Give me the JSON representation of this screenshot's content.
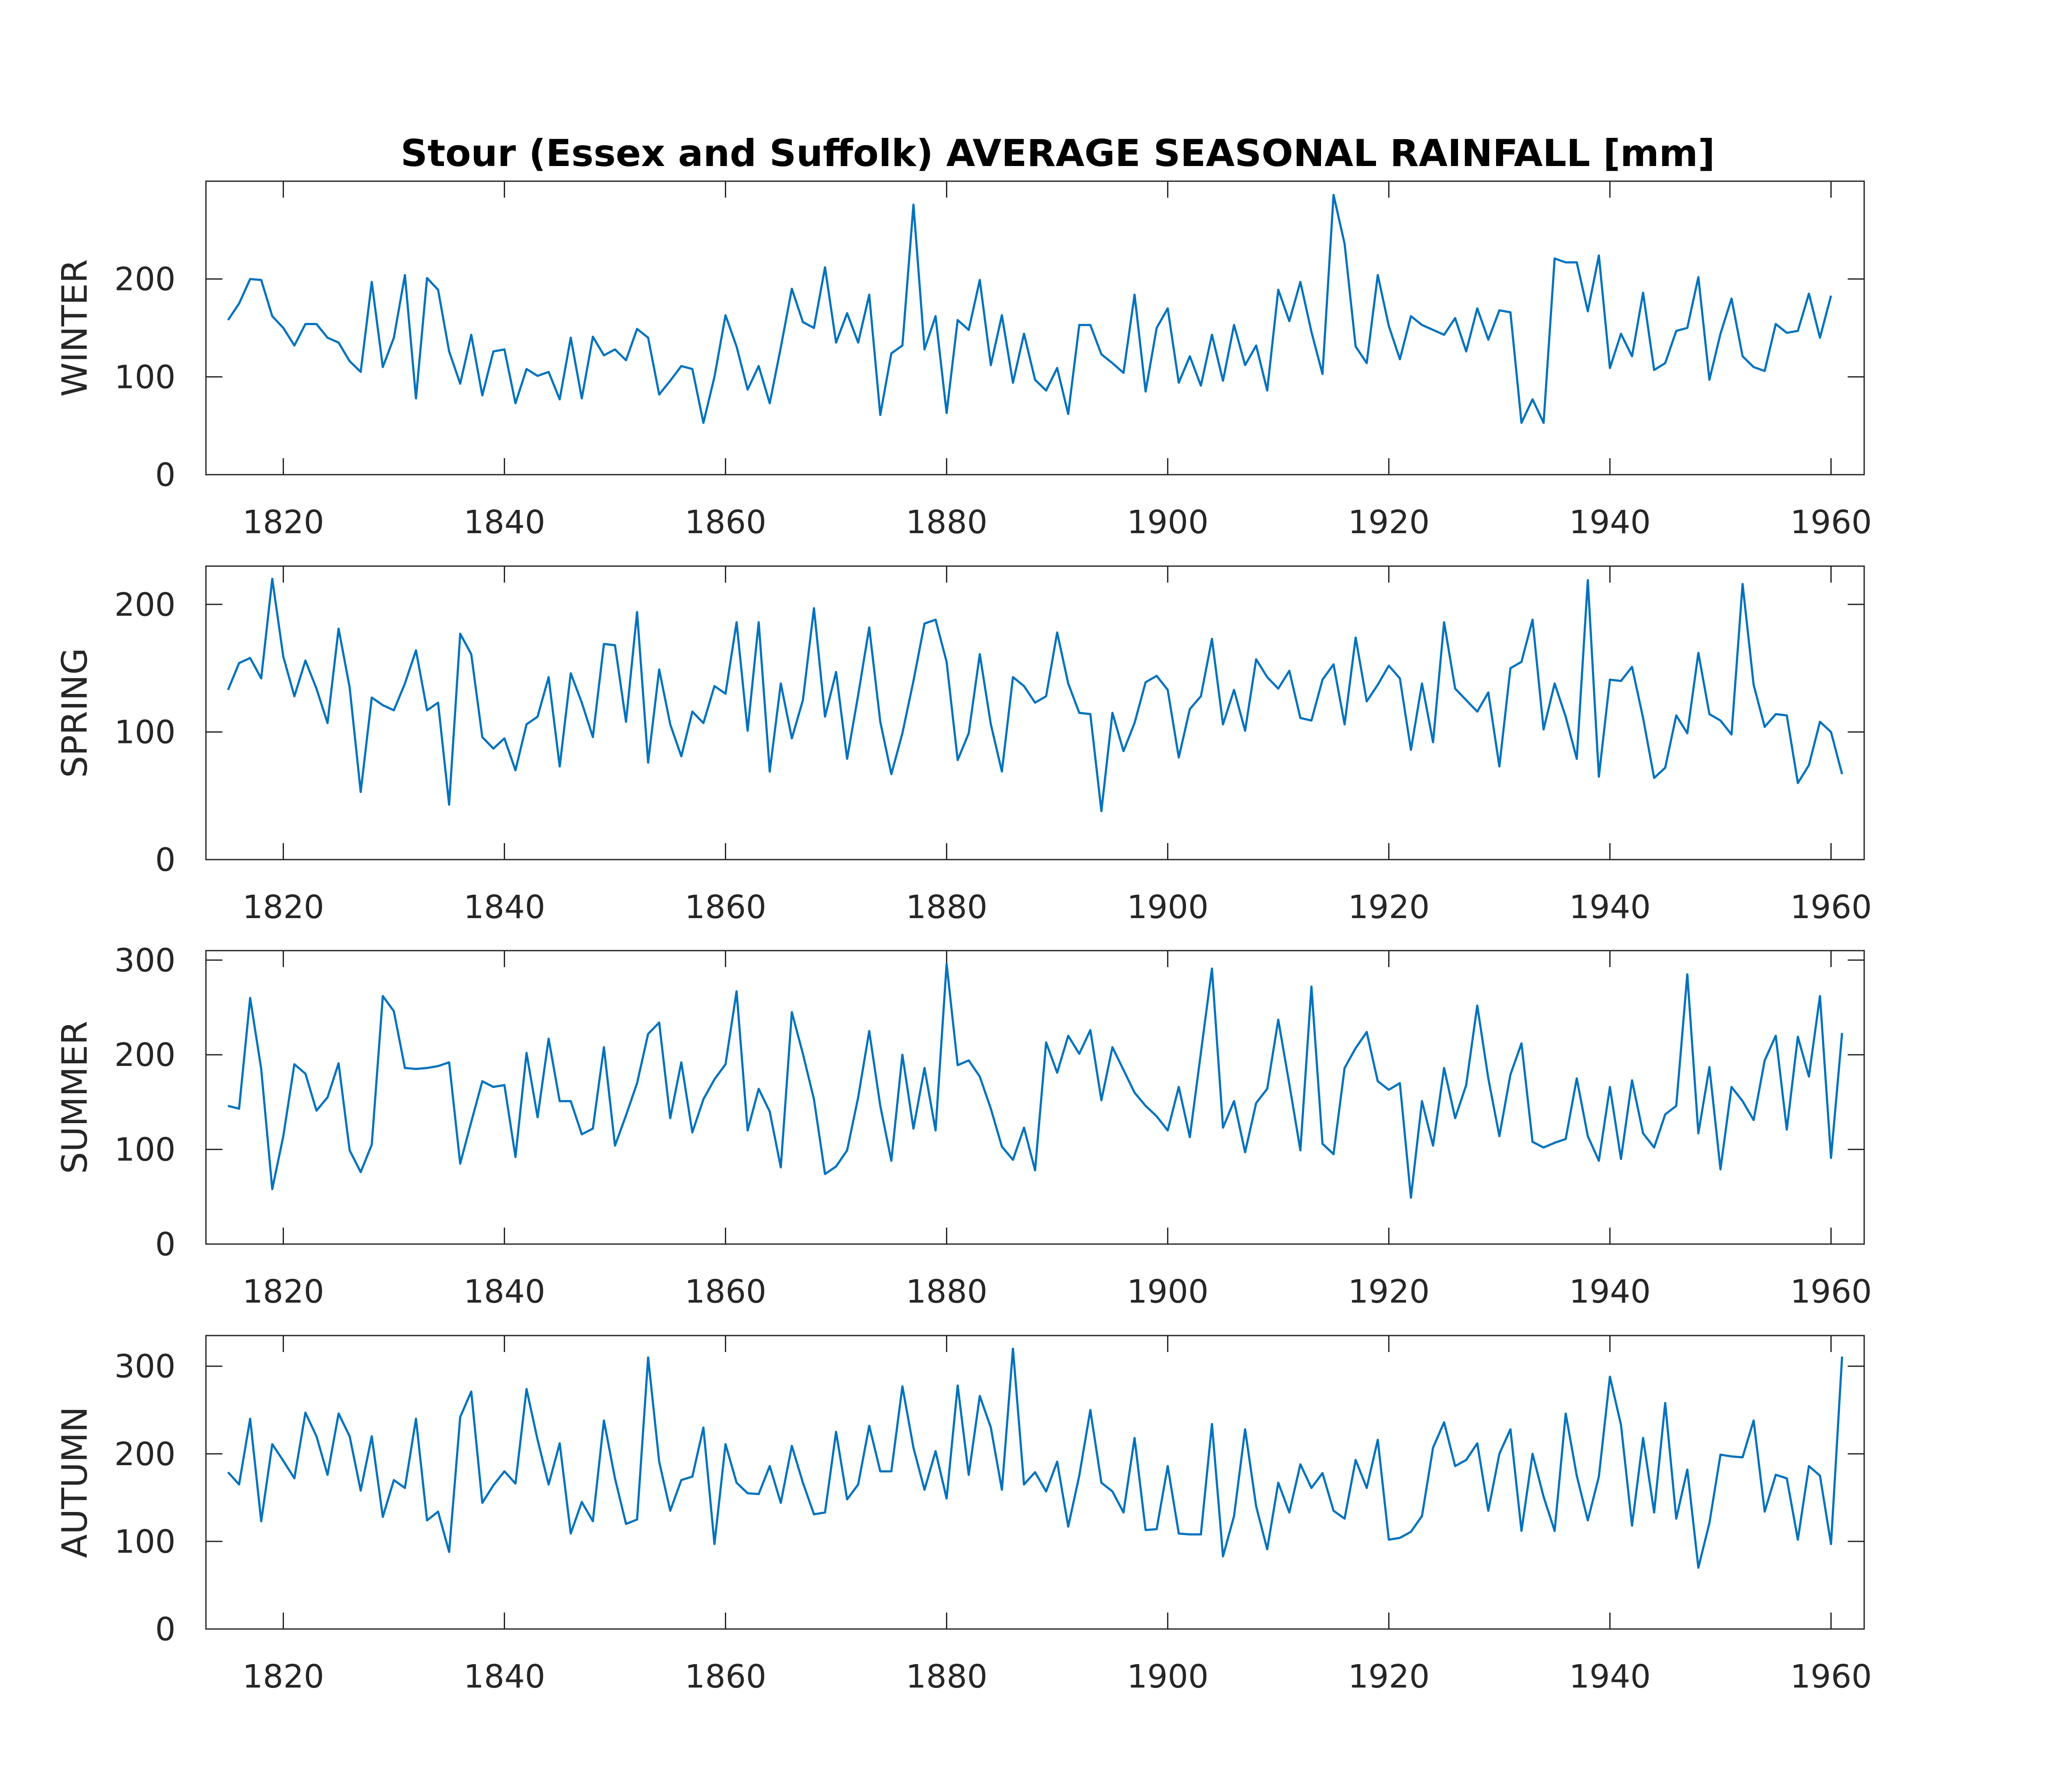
{
  "figure": {
    "title": "Stour (Essex and Suffolk) AVERAGE SEASONAL RAINFALL [mm]"
  },
  "colors": {
    "line": "#0072BD",
    "axis": "#262626"
  },
  "chart_data": [
    {
      "type": "line",
      "ylabel": "WINTER",
      "xlim": [
        1813,
        1963
      ],
      "ylim": [
        0,
        300
      ],
      "xticks": [
        1820,
        1840,
        1860,
        1880,
        1900,
        1920,
        1940,
        1960
      ],
      "yticks": [
        0,
        100,
        200
      ],
      "x_start": 1815,
      "values": [
        158,
        175,
        200,
        199,
        162,
        150,
        132,
        154,
        154,
        140,
        135,
        116,
        105,
        197,
        110,
        140,
        204,
        78,
        201,
        189,
        126,
        93,
        143,
        81,
        126,
        128,
        73,
        108,
        101,
        105,
        77,
        140,
        78,
        141,
        122,
        128,
        117,
        149,
        140,
        82,
        96,
        111,
        108,
        53,
        100,
        163,
        131,
        87,
        111,
        73,
        130,
        190,
        156,
        150,
        212,
        135,
        165,
        135,
        184,
        61,
        124,
        132,
        276,
        128,
        162,
        63,
        158,
        148,
        199,
        112,
        163,
        94,
        144,
        97,
        86,
        109,
        62,
        153,
        153,
        123,
        114,
        104,
        184,
        85,
        150,
        170,
        94,
        121,
        91,
        143,
        96,
        153,
        112,
        132,
        86,
        189,
        157,
        197,
        146,
        103,
        286,
        236,
        131,
        114,
        204,
        152,
        118,
        162,
        153,
        148,
        143,
        160,
        126,
        170,
        138,
        168,
        166,
        53,
        77,
        53,
        221,
        217,
        217,
        167,
        224,
        109,
        144,
        121,
        186,
        107,
        114,
        147,
        150,
        202,
        97,
        144,
        180,
        121,
        110,
        106,
        154,
        145,
        147,
        185,
        140,
        183
      ]
    },
    {
      "type": "line",
      "ylabel": "SPRING",
      "xlim": [
        1813,
        1963
      ],
      "ylim": [
        0,
        230
      ],
      "xticks": [
        1820,
        1840,
        1860,
        1880,
        1900,
        1920,
        1940,
        1960
      ],
      "yticks": [
        0,
        100,
        200
      ],
      "x_start": 1815,
      "values": [
        133,
        154,
        158,
        142,
        220,
        159,
        128,
        156,
        134,
        107,
        181,
        135,
        53,
        127,
        121,
        117,
        138,
        164,
        117,
        123,
        43,
        177,
        161,
        96,
        87,
        95,
        70,
        106,
        112,
        143,
        73,
        146,
        123,
        96,
        169,
        168,
        108,
        194,
        76,
        149,
        106,
        81,
        116,
        107,
        136,
        130,
        186,
        101,
        186,
        69,
        138,
        95,
        125,
        197,
        112,
        147,
        79,
        129,
        182,
        108,
        67,
        99,
        140,
        185,
        188,
        155,
        78,
        99,
        161,
        106,
        69,
        143,
        136,
        123,
        128,
        178,
        138,
        115,
        114,
        38,
        115,
        85,
        107,
        139,
        144,
        133,
        80,
        118,
        128,
        173,
        106,
        133,
        101,
        157,
        143,
        134,
        148,
        111,
        109,
        141,
        153,
        106,
        174,
        124,
        137,
        152,
        142,
        86,
        138,
        92,
        186,
        134,
        125,
        116,
        131,
        73,
        150,
        155,
        188,
        102,
        138,
        112,
        79,
        219,
        65,
        141,
        140,
        151,
        111,
        64,
        72,
        113,
        99,
        162,
        114,
        109,
        98,
        216,
        137,
        104,
        114,
        113,
        60,
        74,
        108,
        100,
        67
      ]
    },
    {
      "type": "line",
      "ylabel": "SUMMER",
      "xlim": [
        1813,
        1963
      ],
      "ylim": [
        0,
        310
      ],
      "xticks": [
        1820,
        1840,
        1860,
        1880,
        1900,
        1920,
        1940,
        1960
      ],
      "yticks": [
        0,
        100,
        200,
        300
      ],
      "x_start": 1815,
      "values": [
        146,
        143,
        260,
        185,
        58,
        114,
        190,
        180,
        141,
        155,
        191,
        99,
        76,
        105,
        262,
        246,
        186,
        185,
        186,
        188,
        192,
        85,
        129,
        172,
        166,
        168,
        92,
        202,
        134,
        217,
        151,
        151,
        116,
        122,
        208,
        104,
        136,
        170,
        222,
        234,
        133,
        192,
        118,
        153,
        174,
        190,
        267,
        120,
        164,
        140,
        81,
        245,
        201,
        153,
        74,
        82,
        99,
        155,
        225,
        146,
        88,
        200,
        122,
        186,
        120,
        296,
        189,
        194,
        177,
        143,
        103,
        89,
        123,
        78,
        213,
        181,
        220,
        201,
        226,
        152,
        208,
        184,
        160,
        146,
        135,
        120,
        166,
        113,
        202,
        291,
        123,
        151,
        97,
        149,
        164,
        237,
        169,
        99,
        272,
        106,
        95,
        186,
        207,
        224,
        172,
        163,
        170,
        49,
        151,
        104,
        186,
        133,
        168,
        252,
        175,
        114,
        179,
        212,
        108,
        102,
        107,
        111,
        175,
        114,
        88,
        166,
        90,
        173,
        117,
        102,
        137,
        146,
        285,
        117,
        187,
        79,
        166,
        151,
        131,
        194,
        220,
        121,
        219,
        177,
        262,
        91,
        223
      ]
    },
    {
      "type": "line",
      "ylabel": "AUTUMN",
      "xlim": [
        1813,
        1963
      ],
      "ylim": [
        0,
        335
      ],
      "xticks": [
        1820,
        1840,
        1860,
        1880,
        1900,
        1920,
        1940,
        1960
      ],
      "yticks": [
        0,
        100,
        200,
        300
      ],
      "x_start": 1815,
      "values": [
        179,
        165,
        240,
        123,
        211,
        192,
        172,
        247,
        220,
        176,
        246,
        220,
        158,
        220,
        128,
        170,
        161,
        240,
        124,
        134,
        88,
        242,
        271,
        144,
        164,
        180,
        166,
        274,
        216,
        165,
        212,
        109,
        145,
        123,
        238,
        172,
        120,
        125,
        310,
        191,
        135,
        170,
        174,
        230,
        97,
        211,
        167,
        155,
        154,
        186,
        144,
        209,
        167,
        131,
        133,
        225,
        148,
        165,
        232,
        180,
        180,
        277,
        207,
        159,
        203,
        149,
        278,
        176,
        266,
        230,
        159,
        320,
        165,
        179,
        157,
        191,
        117,
        175,
        250,
        167,
        157,
        133,
        218,
        113,
        114,
        186,
        109,
        108,
        108,
        234,
        83,
        129,
        228,
        140,
        91,
        167,
        133,
        188,
        161,
        178,
        135,
        126,
        193,
        161,
        216,
        102,
        104,
        111,
        129,
        207,
        236,
        186,
        193,
        212,
        135,
        200,
        228,
        112,
        200,
        151,
        112,
        246,
        175,
        124,
        174,
        288,
        233,
        118,
        218,
        133,
        258,
        126,
        182,
        70,
        121,
        199,
        197,
        196,
        238,
        134,
        176,
        172,
        102,
        186,
        175,
        97,
        311
      ]
    }
  ]
}
